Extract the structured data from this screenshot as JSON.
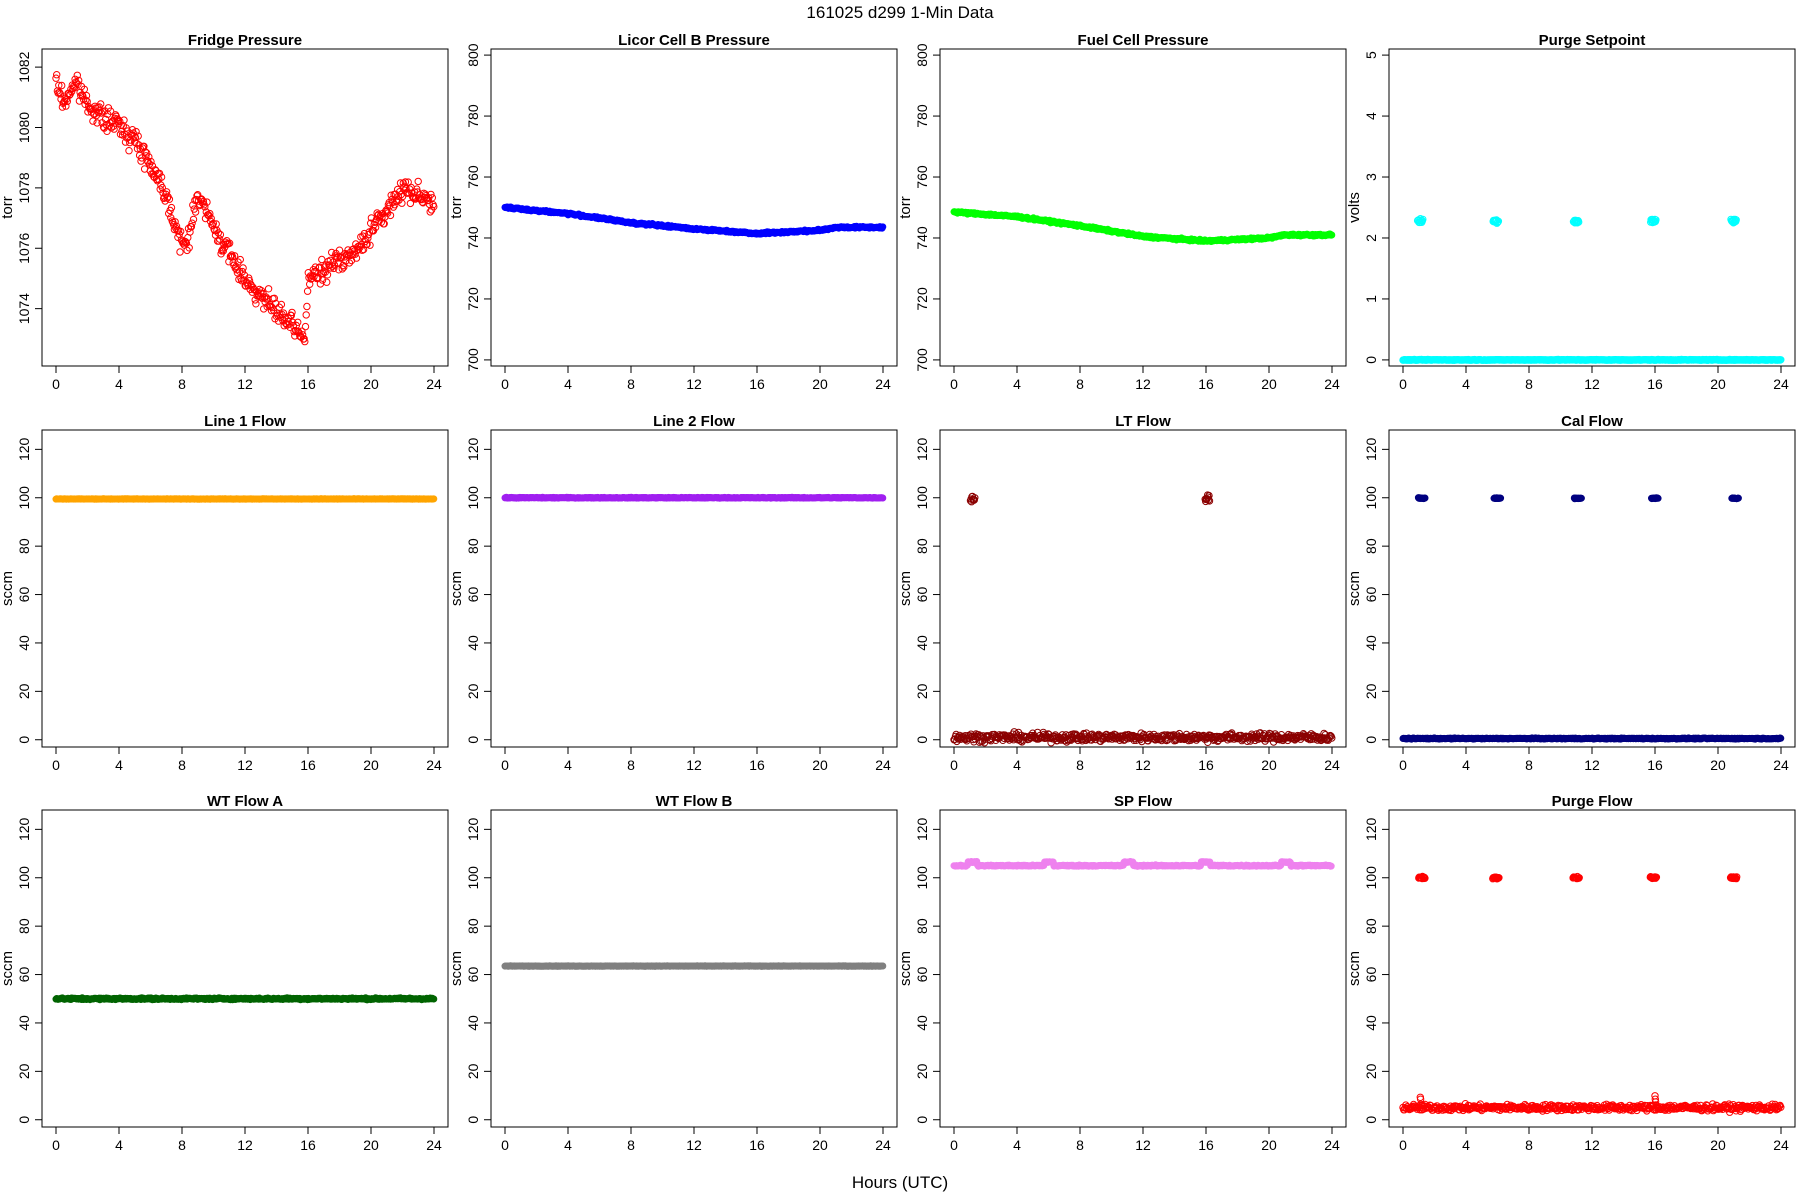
{
  "figure": {
    "title": "161025    d299    1-Min Data",
    "xlabel": "Hours (UTC)"
  },
  "chart_data": [
    {
      "type": "scatter",
      "title": "Fridge Pressure",
      "ylabel": "torr",
      "color": "#ff0000",
      "marker": "open-circle",
      "xlim": [
        0,
        24
      ],
      "x_ticks": [
        0,
        4,
        8,
        12,
        16,
        20,
        24
      ],
      "ylim": [
        1072.1,
        1082.6
      ],
      "y_ticks": [
        1074,
        1076,
        1078,
        1080,
        1082
      ],
      "series": [
        {
          "shape": "trend",
          "x": [
            0,
            0.5,
            1.2,
            2,
            3,
            4,
            5,
            6,
            7,
            8,
            8.5,
            9,
            10,
            11,
            12,
            13,
            14,
            15,
            15.8,
            16,
            17,
            18,
            19,
            20,
            21,
            22,
            23,
            24
          ],
          "y": [
            1081.5,
            1080.8,
            1081.5,
            1080.8,
            1080.3,
            1080.1,
            1079.6,
            1078.8,
            1077.8,
            1076.0,
            1076.5,
            1077.8,
            1076.7,
            1075.8,
            1075.0,
            1074.4,
            1073.9,
            1073.4,
            1073.0,
            1075.0,
            1075.2,
            1075.7,
            1075.8,
            1076.6,
            1077.2,
            1078.0,
            1077.8,
            1077.5
          ],
          "noise": 0.35
        }
      ]
    },
    {
      "type": "scatter",
      "title": "Licor Cell B Pressure",
      "ylabel": "torr",
      "color": "#0000ff",
      "marker": "filled-circle",
      "xlim": [
        0,
        24
      ],
      "x_ticks": [
        0,
        4,
        8,
        12,
        16,
        20,
        24
      ],
      "ylim": [
        698,
        802
      ],
      "y_ticks": [
        700,
        720,
        740,
        760,
        780,
        800
      ],
      "series": [
        {
          "shape": "trend",
          "x": [
            0,
            4,
            8,
            12,
            16,
            18,
            20,
            21,
            24
          ],
          "y": [
            750,
            748,
            745,
            743,
            741.5,
            742,
            742.5,
            743.5,
            743.5
          ],
          "noise": 0.3
        }
      ]
    },
    {
      "type": "scatter",
      "title": "Fuel Cell Pressure",
      "ylabel": "torr",
      "color": "#00ff00",
      "marker": "filled-circle",
      "xlim": [
        0,
        24
      ],
      "x_ticks": [
        0,
        4,
        8,
        12,
        16,
        20,
        24
      ],
      "ylim": [
        698,
        802
      ],
      "y_ticks": [
        700,
        720,
        740,
        760,
        780,
        800
      ],
      "series": [
        {
          "shape": "trend",
          "x": [
            0,
            4,
            8,
            12,
            16,
            18,
            20,
            21,
            24
          ],
          "y": [
            748.5,
            747,
            744,
            740.5,
            739,
            739.5,
            740,
            741,
            741
          ],
          "noise": 0.3
        }
      ]
    },
    {
      "type": "scatter",
      "title": "Purge Setpoint",
      "ylabel": "volts",
      "color": "#00ffff",
      "marker": "open-circle",
      "xlim": [
        0,
        24
      ],
      "x_ticks": [
        0,
        4,
        8,
        12,
        16,
        20,
        24
      ],
      "ylim": [
        -0.1,
        5.1
      ],
      "y_ticks": [
        0,
        1,
        2,
        3,
        4,
        5
      ],
      "series": [
        {
          "shape": "constant",
          "value": 0,
          "noise": 0.005
        },
        {
          "shape": "cluster",
          "centers": [
            1.1,
            5.9,
            11.0,
            15.9,
            21.0
          ],
          "width": 0.35,
          "value": 2.28,
          "noise": 0.04
        }
      ]
    },
    {
      "type": "scatter",
      "title": "Line 1 Flow",
      "ylabel": "sccm",
      "color": "#ffa500",
      "marker": "filled-circle",
      "xlim": [
        0,
        24
      ],
      "x_ticks": [
        0,
        4,
        8,
        12,
        16,
        20,
        24
      ],
      "ylim": [
        -3,
        128
      ],
      "y_ticks": [
        0,
        20,
        40,
        60,
        80,
        100,
        120
      ],
      "series": [
        {
          "shape": "constant",
          "value": 99.5,
          "noise": 0.1
        }
      ]
    },
    {
      "type": "scatter",
      "title": "Line 2 Flow",
      "ylabel": "sccm",
      "color": "#a020f0",
      "marker": "filled-circle",
      "xlim": [
        0,
        24
      ],
      "x_ticks": [
        0,
        4,
        8,
        12,
        16,
        20,
        24
      ],
      "ylim": [
        -3,
        128
      ],
      "y_ticks": [
        0,
        20,
        40,
        60,
        80,
        100,
        120
      ],
      "series": [
        {
          "shape": "constant",
          "value": 100,
          "noise": 0.15
        }
      ]
    },
    {
      "type": "scatter",
      "title": "LT Flow",
      "ylabel": "sccm",
      "color": "#8b0000",
      "marker": "open-circle",
      "xlim": [
        0,
        24
      ],
      "x_ticks": [
        0,
        4,
        8,
        12,
        16,
        20,
        24
      ],
      "ylim": [
        -3,
        128
      ],
      "y_ticks": [
        0,
        20,
        40,
        60,
        80,
        100,
        120
      ],
      "series": [
        {
          "shape": "constant",
          "value": 1,
          "noise": 1.6
        },
        {
          "shape": "cluster",
          "centers": [
            1.2,
            16.1
          ],
          "width": 0.3,
          "value": 99.5,
          "noise": 1.3
        }
      ]
    },
    {
      "type": "scatter",
      "title": "Cal Flow",
      "ylabel": "sccm",
      "color": "#000080",
      "marker": "filled-circle",
      "xlim": [
        0,
        24
      ],
      "x_ticks": [
        0,
        4,
        8,
        12,
        16,
        20,
        24
      ],
      "ylim": [
        -3,
        128
      ],
      "y_ticks": [
        0,
        20,
        40,
        60,
        80,
        100,
        120
      ],
      "series": [
        {
          "shape": "constant",
          "value": 0.5,
          "noise": 0.2
        },
        {
          "shape": "cluster",
          "centers": [
            1.2,
            6.0,
            11.1,
            16.0,
            21.1
          ],
          "width": 0.45,
          "value": 99.8,
          "noise": 0.2
        }
      ]
    },
    {
      "type": "scatter",
      "title": "WT Flow A",
      "ylabel": "sccm",
      "color": "#006400",
      "marker": "filled-circle",
      "xlim": [
        0,
        24
      ],
      "x_ticks": [
        0,
        4,
        8,
        12,
        16,
        20,
        24
      ],
      "ylim": [
        -3,
        128
      ],
      "y_ticks": [
        0,
        20,
        40,
        60,
        80,
        100,
        120
      ],
      "series": [
        {
          "shape": "constant",
          "value": 50,
          "noise": 0.35
        }
      ]
    },
    {
      "type": "scatter",
      "title": "WT Flow B",
      "ylabel": "sccm",
      "color": "#808080",
      "marker": "filled-circle",
      "xlim": [
        0,
        24
      ],
      "x_ticks": [
        0,
        4,
        8,
        12,
        16,
        20,
        24
      ],
      "ylim": [
        -3,
        128
      ],
      "y_ticks": [
        0,
        20,
        40,
        60,
        80,
        100,
        120
      ],
      "series": [
        {
          "shape": "constant",
          "value": 63.5,
          "noise": 0.1
        }
      ]
    },
    {
      "type": "scatter",
      "title": "SP Flow",
      "ylabel": "sccm",
      "color": "#ee82ee",
      "marker": "filled-circle",
      "xlim": [
        0,
        24
      ],
      "x_ticks": [
        0,
        4,
        8,
        12,
        16,
        20,
        24
      ],
      "ylim": [
        -3,
        128
      ],
      "y_ticks": [
        0,
        20,
        40,
        60,
        80,
        100,
        120
      ],
      "series": [
        {
          "shape": "stepped",
          "base": 105,
          "bump": 1.5,
          "centers": [
            1.2,
            6.0,
            11.1,
            16.0,
            21.1
          ],
          "width": 0.6,
          "noise": 0.25
        }
      ]
    },
    {
      "type": "scatter",
      "title": "Purge Flow",
      "ylabel": "sccm",
      "color": "#ff0000",
      "marker": "open-circle",
      "xlim": [
        0,
        24
      ],
      "x_ticks": [
        0,
        4,
        8,
        12,
        16,
        20,
        24
      ],
      "ylim": [
        -3,
        128
      ],
      "y_ticks": [
        0,
        20,
        40,
        60,
        80,
        100,
        120
      ],
      "series": [
        {
          "shape": "constant",
          "value": 5,
          "noise": 1.2
        },
        {
          "shape": "cluster",
          "centers": [
            1.2,
            5.9,
            11.0,
            15.9,
            21.0
          ],
          "width": 0.4,
          "value": 100,
          "noise": 0.4
        },
        {
          "shape": "spike",
          "at": [
            1.1,
            16.0
          ],
          "value": 9.5
        }
      ]
    }
  ]
}
